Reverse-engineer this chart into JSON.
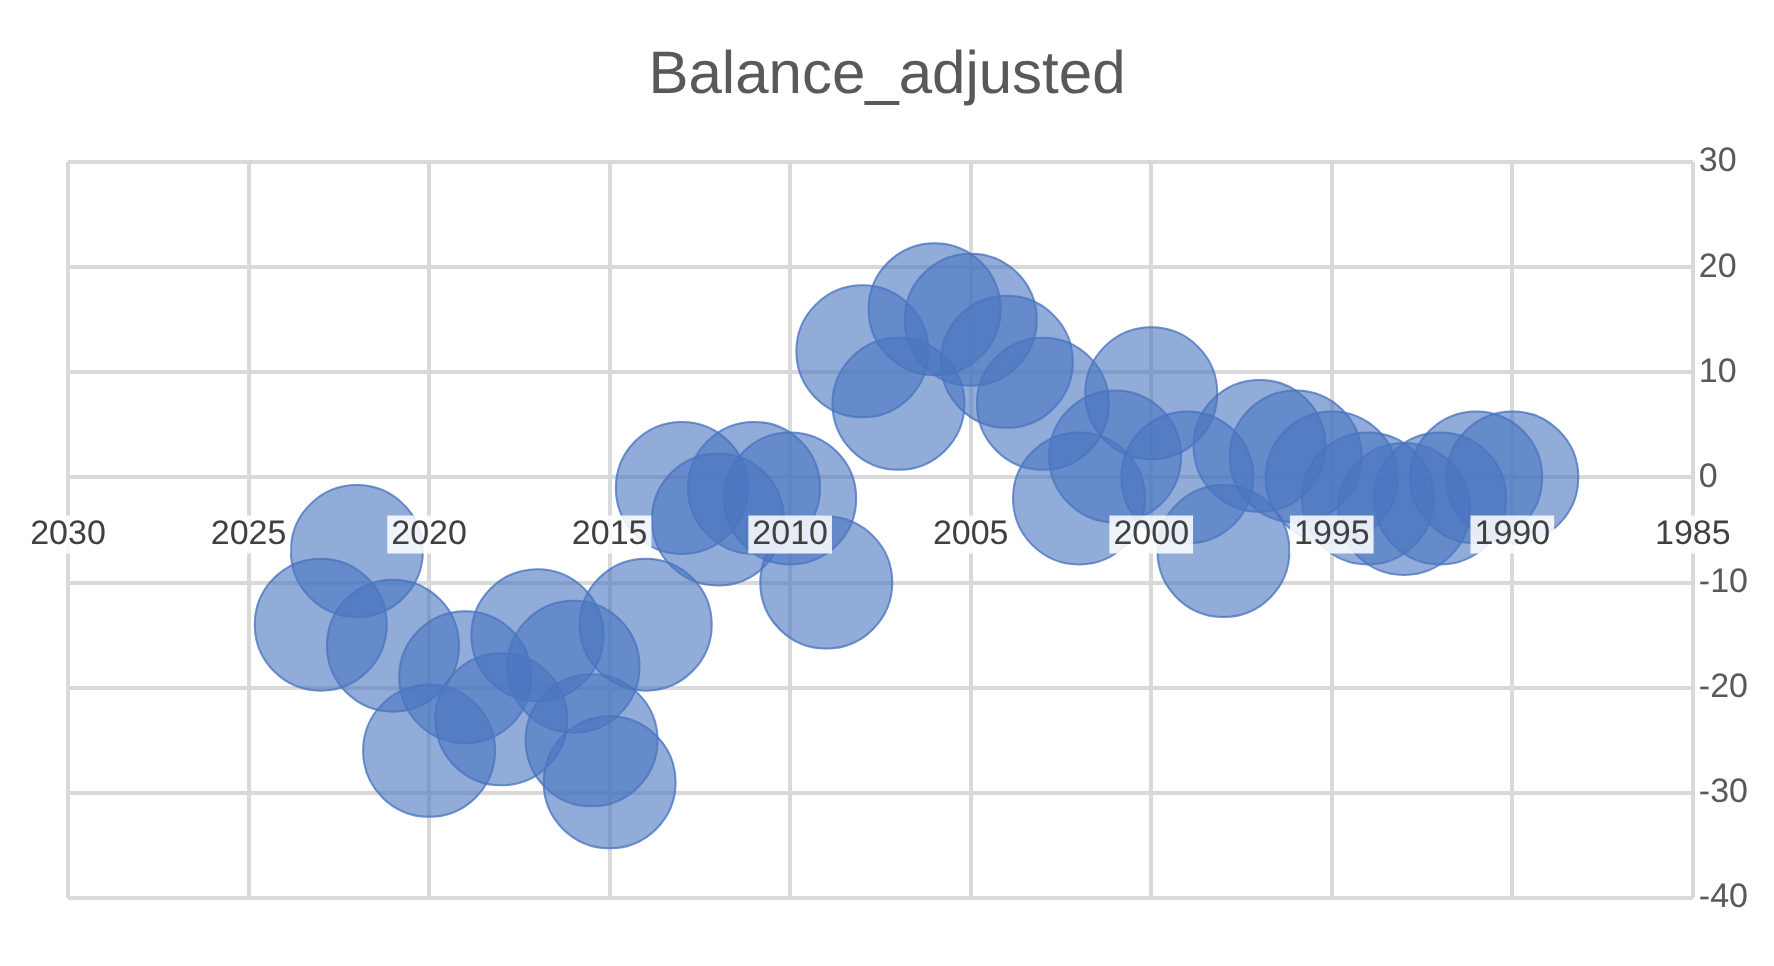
{
  "chart_data": {
    "type": "bubble",
    "title": "Balance_adjusted",
    "x": [
      2023,
      2022,
      2021,
      2020,
      2019,
      2018,
      2017,
      2016,
      2015.5,
      2015,
      2014,
      2013,
      2012,
      2011,
      2010,
      2009,
      2008,
      2007,
      2006,
      2005,
      2004,
      2003,
      2002,
      2001,
      2000,
      1999,
      1998,
      1997,
      1996,
      1995,
      1994,
      1993,
      1992,
      1991,
      1990
    ],
    "values": [
      -14,
      -7,
      -16,
      -26,
      -19,
      -23,
      -15,
      -18,
      -25,
      -29,
      -14,
      -1,
      -4,
      -1,
      -2,
      -10,
      12,
      7,
      16,
      15,
      11,
      7,
      -2,
      2,
      8,
      0,
      -7,
      3,
      2,
      0,
      -2,
      -3,
      -2,
      0,
      0
    ],
    "sizes": [
      1,
      1,
      1,
      1,
      1,
      1,
      1,
      1,
      1,
      1,
      1,
      1,
      1,
      1,
      1,
      1,
      1,
      1,
      1,
      1,
      1,
      1,
      1,
      1,
      1,
      1,
      1,
      1,
      1,
      1,
      1,
      1,
      1,
      1,
      1
    ],
    "color": "#4a74c0",
    "xlim": [
      2030,
      1985
    ],
    "xticks": [
      2030,
      2025,
      2020,
      2015,
      2010,
      2005,
      2000,
      1995,
      1990,
      1985
    ],
    "ylim": [
      -40,
      30
    ],
    "yticks": [
      -40,
      -30,
      -20,
      -10,
      0,
      10,
      20,
      30
    ],
    "grid": true,
    "legend": false
  }
}
